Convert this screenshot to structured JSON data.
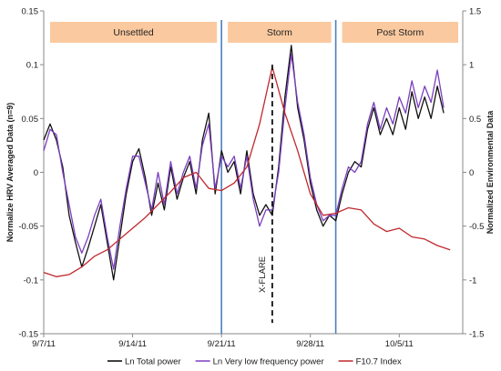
{
  "chart_data": {
    "type": "line",
    "x_axis": {
      "ticks": [
        "9/7/11",
        "9/14/11",
        "9/21/11",
        "9/28/11",
        "10/5/11"
      ],
      "range": [
        "2011-09-07",
        "2011-10-10"
      ]
    },
    "y_left": {
      "label": "Normalize HRV Averaged Data (n=9)",
      "range": [
        -0.15,
        0.15
      ],
      "ticks": [
        "0.15",
        "0.1",
        "0.05",
        "0",
        "-0.05",
        "-0.1",
        "-0.15"
      ]
    },
    "y_right": {
      "label": "Normalized Environmental Data",
      "range": [
        -1.5,
        1.5
      ],
      "ticks": [
        "1.5",
        "1",
        "0.5",
        "0",
        "-0.5",
        "-1",
        "-1.5"
      ]
    },
    "phases": [
      {
        "label": "Unsettled",
        "start": "2011-09-07",
        "end": "2011-09-21"
      },
      {
        "label": "Storm",
        "start": "2011-09-21",
        "end": "2011-09-30"
      },
      {
        "label": "Post Storm",
        "start": "2011-09-30",
        "end": "2011-10-10"
      }
    ],
    "phase_dividers": [
      "2011-09-21",
      "2011-09-30"
    ],
    "annotation": {
      "label": "X-FLARE",
      "date": "2011-09-25",
      "y_top": 0.1,
      "y_bottom": -0.14
    },
    "series": [
      {
        "name": "Ln Total power",
        "color": "#111111",
        "axis": "left",
        "points": [
          [
            "2011-09-07",
            0.03
          ],
          [
            "2011-09-07.5",
            0.045
          ],
          [
            "2011-09-08",
            0.03
          ],
          [
            "2011-09-08.5",
            0.005
          ],
          [
            "2011-09-09",
            -0.04
          ],
          [
            "2011-09-09.5",
            -0.065
          ],
          [
            "2011-09-10",
            -0.088
          ],
          [
            "2011-09-10.5",
            -0.07
          ],
          [
            "2011-09-11",
            -0.05
          ],
          [
            "2011-09-11.5",
            -0.03
          ],
          [
            "2011-09-12",
            -0.065
          ],
          [
            "2011-09-12.5",
            -0.1
          ],
          [
            "2011-09-13",
            -0.06
          ],
          [
            "2011-09-13.5",
            -0.02
          ],
          [
            "2011-09-14",
            0.01
          ],
          [
            "2011-09-14.5",
            0.022
          ],
          [
            "2011-09-15",
            -0.005
          ],
          [
            "2011-09-15.5",
            -0.04
          ],
          [
            "2011-09-16",
            -0.01
          ],
          [
            "2011-09-16.5",
            -0.035
          ],
          [
            "2011-09-17",
            0.005
          ],
          [
            "2011-09-17.5",
            -0.025
          ],
          [
            "2011-09-18",
            -0.005
          ],
          [
            "2011-09-18.5",
            0.01
          ],
          [
            "2011-09-19",
            -0.02
          ],
          [
            "2011-09-19.5",
            0.03
          ],
          [
            "2011-09-20",
            0.055
          ],
          [
            "2011-09-20.5",
            -0.02
          ],
          [
            "2011-09-21",
            0.02
          ],
          [
            "2011-09-21.5",
            0.0
          ],
          [
            "2011-09-22",
            0.01
          ],
          [
            "2011-09-22.5",
            -0.02
          ],
          [
            "2011-09-23",
            0.02
          ],
          [
            "2011-09-23.5",
            -0.02
          ],
          [
            "2011-09-24",
            -0.04
          ],
          [
            "2011-09-24.5",
            -0.03
          ],
          [
            "2011-09-25",
            -0.04
          ],
          [
            "2011-09-25.5",
            0.005
          ],
          [
            "2011-09-26",
            0.07
          ],
          [
            "2011-09-26.5",
            0.118
          ],
          [
            "2011-09-27",
            0.06
          ],
          [
            "2011-09-27.5",
            0.03
          ],
          [
            "2011-09-28",
            -0.01
          ],
          [
            "2011-09-28.5",
            -0.035
          ],
          [
            "2011-09-29",
            -0.05
          ],
          [
            "2011-09-29.5",
            -0.04
          ],
          [
            "2011-09-30",
            -0.045
          ],
          [
            "2011-09-30.5",
            -0.02
          ],
          [
            "2011-10-01",
            0.0
          ],
          [
            "2011-10-01.5",
            0.01
          ],
          [
            "2011-10-02",
            0.005
          ],
          [
            "2011-10-02.5",
            0.04
          ],
          [
            "2011-10-03",
            0.06
          ],
          [
            "2011-10-03.5",
            0.035
          ],
          [
            "2011-10-04",
            0.05
          ],
          [
            "2011-10-04.5",
            0.035
          ],
          [
            "2011-10-05",
            0.06
          ],
          [
            "2011-10-05.5",
            0.04
          ],
          [
            "2011-10-06",
            0.075
          ],
          [
            "2011-10-06.5",
            0.05
          ],
          [
            "2011-10-07",
            0.07
          ],
          [
            "2011-10-07.5",
            0.05
          ],
          [
            "2011-10-08",
            0.08
          ],
          [
            "2011-10-08.5",
            0.055
          ]
        ]
      },
      {
        "name": "Ln Very low frequency power",
        "color": "#7b3fbf",
        "axis": "left",
        "points": [
          [
            "2011-09-07",
            0.02
          ],
          [
            "2011-09-07.5",
            0.04
          ],
          [
            "2011-09-08",
            0.035
          ],
          [
            "2011-09-08.5",
            0.0
          ],
          [
            "2011-09-09",
            -0.03
          ],
          [
            "2011-09-09.5",
            -0.06
          ],
          [
            "2011-09-10",
            -0.075
          ],
          [
            "2011-09-10.5",
            -0.06
          ],
          [
            "2011-09-11",
            -0.04
          ],
          [
            "2011-09-11.5",
            -0.025
          ],
          [
            "2011-09-12",
            -0.06
          ],
          [
            "2011-09-12.5",
            -0.09
          ],
          [
            "2011-09-13",
            -0.05
          ],
          [
            "2011-09-13.5",
            -0.015
          ],
          [
            "2011-09-14",
            0.015
          ],
          [
            "2011-09-14.5",
            0.015
          ],
          [
            "2011-09-15",
            -0.01
          ],
          [
            "2011-09-15.5",
            -0.035
          ],
          [
            "2011-09-16",
            0.0
          ],
          [
            "2011-09-16.5",
            -0.03
          ],
          [
            "2011-09-17",
            0.01
          ],
          [
            "2011-09-17.5",
            -0.02
          ],
          [
            "2011-09-18",
            0.0
          ],
          [
            "2011-09-18.5",
            0.015
          ],
          [
            "2011-09-19",
            -0.015
          ],
          [
            "2011-09-19.5",
            0.025
          ],
          [
            "2011-09-20",
            0.045
          ],
          [
            "2011-09-20.5",
            -0.015
          ],
          [
            "2011-09-21",
            0.015
          ],
          [
            "2011-09-21.5",
            0.005
          ],
          [
            "2011-09-22",
            0.015
          ],
          [
            "2011-09-22.5",
            -0.015
          ],
          [
            "2011-09-23",
            0.015
          ],
          [
            "2011-09-23.5",
            -0.025
          ],
          [
            "2011-09-24",
            -0.05
          ],
          [
            "2011-09-24.5",
            -0.035
          ],
          [
            "2011-09-25",
            -0.035
          ],
          [
            "2011-09-25.5",
            0.0
          ],
          [
            "2011-09-26",
            0.06
          ],
          [
            "2011-09-26.5",
            0.11
          ],
          [
            "2011-09-27",
            0.065
          ],
          [
            "2011-09-27.5",
            0.035
          ],
          [
            "2011-09-28",
            -0.005
          ],
          [
            "2011-09-28.5",
            -0.03
          ],
          [
            "2011-09-29",
            -0.045
          ],
          [
            "2011-09-29.5",
            -0.04
          ],
          [
            "2011-09-30",
            -0.04
          ],
          [
            "2011-09-30.5",
            -0.015
          ],
          [
            "2011-10-01",
            0.005
          ],
          [
            "2011-10-01.5",
            0.0
          ],
          [
            "2011-10-02",
            0.01
          ],
          [
            "2011-10-02.5",
            0.045
          ],
          [
            "2011-10-03",
            0.065
          ],
          [
            "2011-10-03.5",
            0.04
          ],
          [
            "2011-10-04",
            0.06
          ],
          [
            "2011-10-04.5",
            0.045
          ],
          [
            "2011-10-05",
            0.07
          ],
          [
            "2011-10-05.5",
            0.055
          ],
          [
            "2011-10-06",
            0.085
          ],
          [
            "2011-10-06.5",
            0.06
          ],
          [
            "2011-10-07",
            0.08
          ],
          [
            "2011-10-07.5",
            0.065
          ],
          [
            "2011-10-08",
            0.095
          ],
          [
            "2011-10-08.5",
            0.06
          ]
        ]
      },
      {
        "name": "F10.7 Index",
        "color": "#c0282d",
        "axis": "right",
        "points": [
          [
            "2011-09-07",
            -0.93
          ],
          [
            "2011-09-08",
            -0.97
          ],
          [
            "2011-09-09",
            -0.95
          ],
          [
            "2011-09-10",
            -0.88
          ],
          [
            "2011-09-11",
            -0.78
          ],
          [
            "2011-09-12",
            -0.72
          ],
          [
            "2011-09-13",
            -0.62
          ],
          [
            "2011-09-14",
            -0.52
          ],
          [
            "2011-09-15",
            -0.42
          ],
          [
            "2011-09-16",
            -0.3
          ],
          [
            "2011-09-17",
            -0.18
          ],
          [
            "2011-09-18",
            -0.05
          ],
          [
            "2011-09-19",
            0.0
          ],
          [
            "2011-09-20",
            -0.15
          ],
          [
            "2011-09-21",
            -0.17
          ],
          [
            "2011-09-22",
            -0.1
          ],
          [
            "2011-09-23",
            0.05
          ],
          [
            "2011-09-24",
            0.45
          ],
          [
            "2011-09-25",
            0.98
          ],
          [
            "2011-09-26",
            0.55
          ],
          [
            "2011-09-27",
            0.2
          ],
          [
            "2011-09-28",
            -0.2
          ],
          [
            "2011-09-29",
            -0.4
          ],
          [
            "2011-09-30",
            -0.38
          ],
          [
            "2011-10-01",
            -0.33
          ],
          [
            "2011-10-02",
            -0.35
          ],
          [
            "2011-10-03",
            -0.48
          ],
          [
            "2011-10-04",
            -0.55
          ],
          [
            "2011-10-05",
            -0.52
          ],
          [
            "2011-10-06",
            -0.6
          ],
          [
            "2011-10-07",
            -0.62
          ],
          [
            "2011-10-08",
            -0.68
          ],
          [
            "2011-10-09",
            -0.72
          ]
        ]
      }
    ],
    "legend": {
      "placement": "bottom"
    },
    "grid": false
  }
}
